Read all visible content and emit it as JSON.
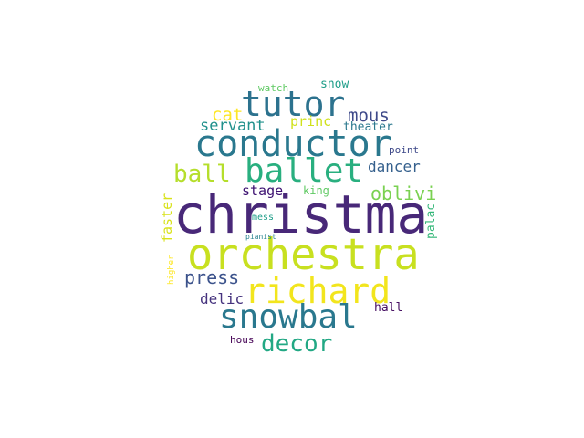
{
  "word_cloud": {
    "words": [
      {
        "text": "christma",
        "color": "#482878"
      },
      {
        "text": "orchestra",
        "color": "#c8e020"
      },
      {
        "text": "conductor",
        "color": "#2a788e"
      },
      {
        "text": "tutor",
        "color": "#2c728e"
      },
      {
        "text": "richard",
        "color": "#f2e51d"
      },
      {
        "text": "ballet",
        "color": "#29af7f"
      },
      {
        "text": "snowbal",
        "color": "#2a788e"
      },
      {
        "text": "decor",
        "color": "#22a884"
      },
      {
        "text": "ball",
        "color": "#b5de2b"
      },
      {
        "text": "press",
        "color": "#3b528b"
      },
      {
        "text": "oblivi",
        "color": "#7ad151"
      },
      {
        "text": "mous",
        "color": "#3e4989"
      },
      {
        "text": "cat",
        "color": "#fde725"
      },
      {
        "text": "servant",
        "color": "#21918c"
      },
      {
        "text": "dancer",
        "color": "#35608d"
      },
      {
        "text": "delic",
        "color": "#46337e"
      },
      {
        "text": "stage",
        "color": "#3b0f70"
      },
      {
        "text": "princ",
        "color": "#d0e11c"
      },
      {
        "text": "faster",
        "color": "#d8e219"
      },
      {
        "text": "snow",
        "color": "#1f9e89"
      },
      {
        "text": "theater",
        "color": "#2a788e"
      },
      {
        "text": "king",
        "color": "#5ec962"
      },
      {
        "text": "hall",
        "color": "#471063"
      },
      {
        "text": "palac",
        "color": "#35b779"
      },
      {
        "text": "point",
        "color": "#3e4989"
      },
      {
        "text": "hous",
        "color": "#440154"
      },
      {
        "text": "watch",
        "color": "#5ec962"
      },
      {
        "text": "mess",
        "color": "#1f9e89"
      },
      {
        "text": "pianist",
        "color": "#26828e"
      },
      {
        "text": "higher",
        "color": "#fde725"
      }
    ]
  }
}
